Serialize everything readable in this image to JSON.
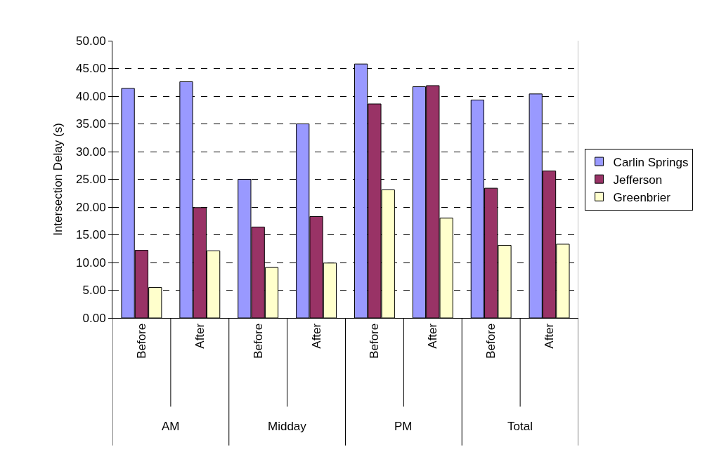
{
  "chart_data": {
    "type": "bar",
    "ylabel": "Intersection Delay (s)",
    "categories": [
      "Before",
      "After",
      "Before",
      "After",
      "Before",
      "After",
      "Before",
      "After"
    ],
    "annotations": [
      "AM",
      "Midday",
      "PM",
      "Total"
    ],
    "series": [
      {
        "name": "Carlin Springs",
        "color": "#9999ff",
        "values": [
          41.4,
          42.6,
          25.0,
          35.0,
          45.8,
          41.7,
          39.3,
          40.4
        ]
      },
      {
        "name": "Jefferson",
        "color": "#993366",
        "values": [
          12.2,
          19.9,
          16.4,
          18.3,
          38.6,
          41.9,
          23.4,
          26.5
        ]
      },
      {
        "name": "Greenbrier",
        "color": "#ffffcc",
        "values": [
          5.5,
          12.1,
          9.1,
          9.9,
          23.1,
          18.0,
          13.1,
          13.3
        ]
      }
    ],
    "ylim": [
      0,
      50
    ],
    "yticks": [
      {
        "value": 0,
        "label": "0.00"
      },
      {
        "value": 5,
        "label": "5.00"
      },
      {
        "value": 10,
        "label": "10.00"
      },
      {
        "value": 15,
        "label": "15.00"
      },
      {
        "value": 20,
        "label": "20.00"
      },
      {
        "value": 25,
        "label": "25.00"
      },
      {
        "value": 30,
        "label": "30.00"
      },
      {
        "value": 35,
        "label": "35.00"
      },
      {
        "value": 40,
        "label": "40.00"
      },
      {
        "value": 45,
        "label": "45.00"
      },
      {
        "value": 50,
        "label": "50.00"
      }
    ],
    "grid": "y",
    "legend": "right"
  }
}
